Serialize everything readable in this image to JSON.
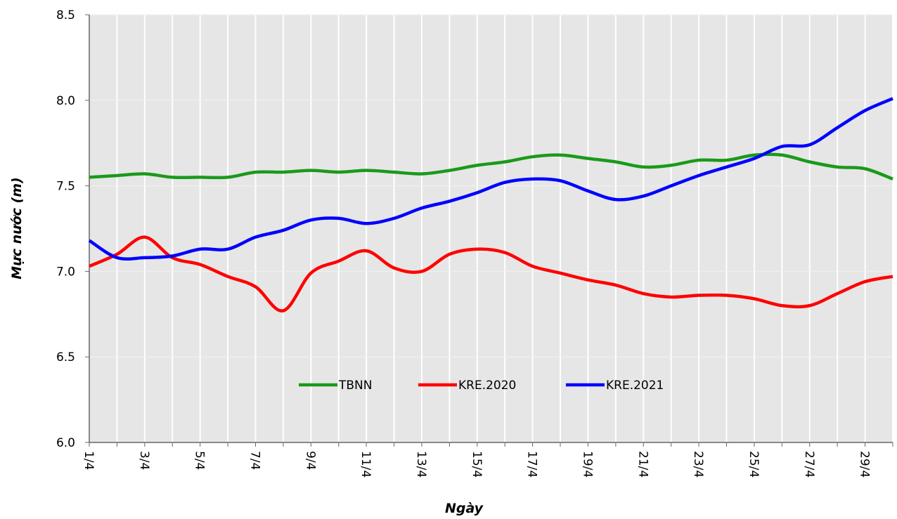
{
  "chart_data": {
    "type": "line",
    "xlabel": "Ngày",
    "ylabel": "Mực nước (m)",
    "categories": [
      "1/4",
      null,
      "3/4",
      null,
      "5/4",
      null,
      "7/4",
      null,
      "9/4",
      null,
      "11/4",
      null,
      "13/4",
      null,
      "15/4",
      null,
      "17/4",
      null,
      "19/4",
      null,
      "21/4",
      null,
      "23/4",
      null,
      "25/4",
      null,
      "27/4",
      null,
      "29/4",
      null
    ],
    "series": [
      {
        "name": "TBNN",
        "color": "#1a9a1a",
        "values": [
          7.55,
          7.56,
          7.57,
          7.55,
          7.55,
          7.55,
          7.58,
          7.58,
          7.59,
          7.58,
          7.59,
          7.58,
          7.57,
          7.59,
          7.62,
          7.64,
          7.67,
          7.68,
          7.66,
          7.64,
          7.61,
          7.62,
          7.65,
          7.65,
          7.68,
          7.68,
          7.64,
          7.61,
          7.6,
          7.54
        ]
      },
      {
        "name": "KRE.2020",
        "color": "#ff0000",
        "values": [
          7.03,
          7.1,
          7.2,
          7.08,
          7.04,
          6.97,
          6.91,
          6.77,
          6.99,
          7.06,
          7.12,
          7.02,
          7.0,
          7.1,
          7.13,
          7.11,
          7.03,
          6.99,
          6.95,
          6.92,
          6.87,
          6.85,
          6.86,
          6.86,
          6.84,
          6.8,
          6.8,
          6.87,
          6.94,
          6.97
        ]
      },
      {
        "name": "KRE.2021",
        "color": "#0000ff",
        "values": [
          7.18,
          7.08,
          7.08,
          7.09,
          7.13,
          7.13,
          7.2,
          7.24,
          7.3,
          7.31,
          7.28,
          7.31,
          7.37,
          7.41,
          7.46,
          7.52,
          7.54,
          7.53,
          7.47,
          7.42,
          7.44,
          7.5,
          7.56,
          7.61,
          7.66,
          7.73,
          7.74,
          7.84,
          7.94,
          8.01
        ]
      }
    ],
    "ylim": [
      6,
      8.5
    ],
    "yticks": [
      {
        "value": 6,
        "label": "6.0"
      },
      6.5,
      {
        "value": 7,
        "label": "7.0"
      },
      7.5,
      {
        "value": 8,
        "label": "8.0"
      },
      8.5
    ],
    "grid": true,
    "legend": "bottom"
  }
}
